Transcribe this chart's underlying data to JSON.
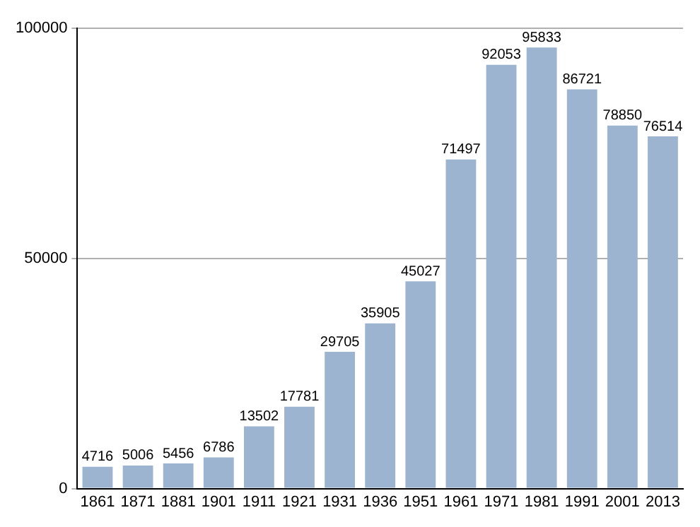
{
  "chart_data": {
    "type": "bar",
    "categories": [
      "1861",
      "1871",
      "1881",
      "1901",
      "1911",
      "1921",
      "1931",
      "1936",
      "1951",
      "1961",
      "1971",
      "1981",
      "1991",
      "2001",
      "2013"
    ],
    "values": [
      4716,
      5006,
      5456,
      6786,
      13502,
      17781,
      29705,
      35905,
      45027,
      71497,
      92053,
      95833,
      86721,
      78850,
      76514
    ],
    "color": "#9db4d0",
    "ylim": [
      0,
      100000
    ],
    "yticks": [
      0,
      50000,
      100000
    ],
    "grid": "y",
    "data_labels": true
  }
}
